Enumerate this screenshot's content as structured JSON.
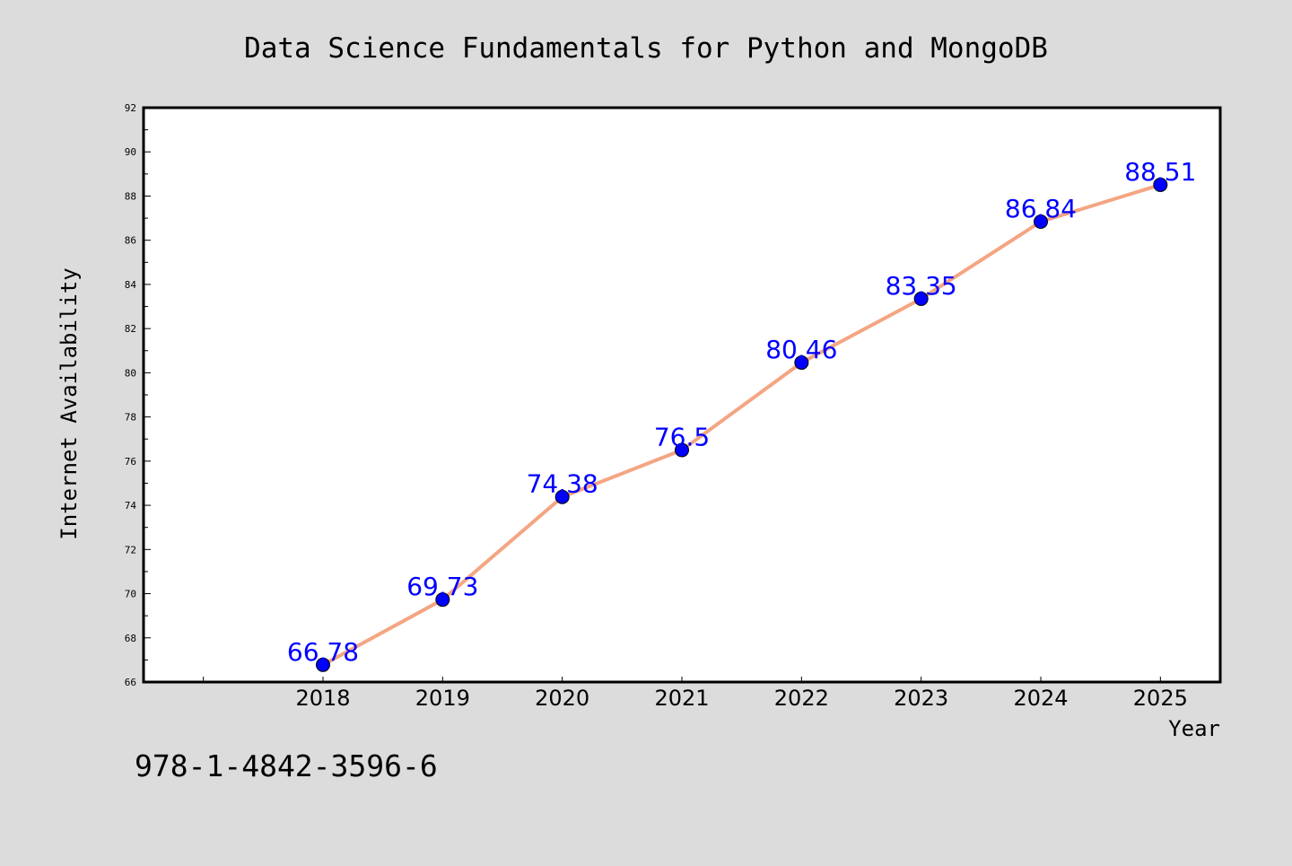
{
  "chart_data": {
    "type": "line",
    "title": "Data Science Fundamentals for Python and MongoDB",
    "xlabel": "Year",
    "ylabel": "Internet Availability",
    "x": [
      2018,
      2019,
      2020,
      2021,
      2022,
      2023,
      2024,
      2025
    ],
    "series": [
      {
        "values": [
          66.78,
          69.73,
          74.38,
          76.5,
          80.46,
          83.35,
          86.84,
          88.51
        ],
        "data_labels": [
          "66.78",
          "69.73",
          "74.38",
          "76.5",
          "80.46",
          "83.35",
          "86.84",
          "88.51"
        ],
        "line_color": "#f4a582",
        "marker_color": "#0000ff"
      }
    ],
    "xlim": [
      2016.5,
      2025.5
    ],
    "ylim": [
      66,
      92
    ],
    "yticks": [
      66,
      68,
      70,
      72,
      74,
      76,
      78,
      80,
      82,
      84,
      86,
      88,
      90,
      92
    ],
    "xtick_labels": [
      "2018",
      "2019",
      "2020",
      "2021",
      "2022",
      "2023",
      "2024",
      "2025"
    ],
    "grid": false,
    "legend": "none"
  },
  "footer": {
    "isbn": "978-1-4842-3596-6"
  },
  "colors": {
    "background": "#dcdcdc",
    "plot_area": "#ffffff",
    "label_color": "#0000ff"
  }
}
